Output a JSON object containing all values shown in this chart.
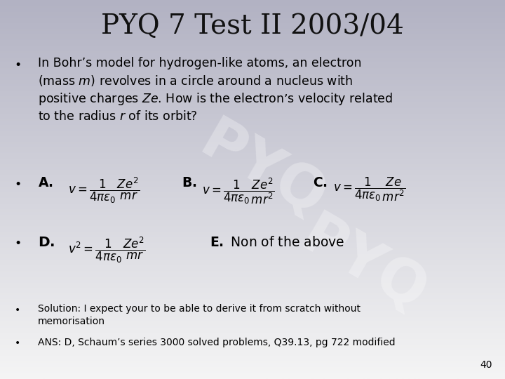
{
  "title": "PYQ 7 Test II 2003/04",
  "bg_top": "#f5f5f5",
  "bg_bottom": "#b8b8c8",
  "title_fontsize": 28,
  "title_color": "#111111",
  "body_fontsize": 12.5,
  "small_fontsize": 10,
  "solution1": "Solution: I expect your to be able to derive it from scratch without\nmemorisation",
  "solution2": "ANS: D, Schaum’s series 3000 solved problems, Q39.13, pg 722 modified",
  "page_number": "40"
}
